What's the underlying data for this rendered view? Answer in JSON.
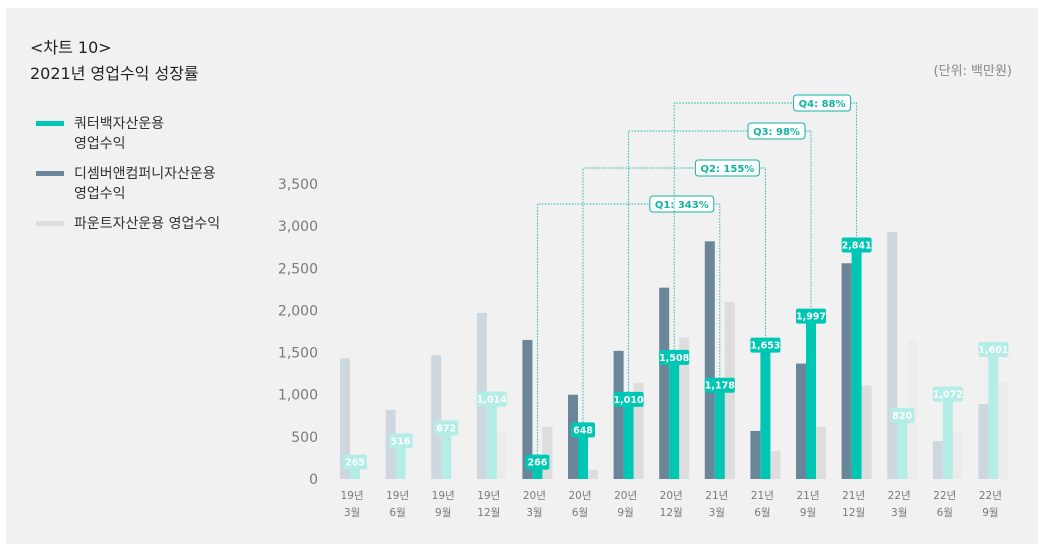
{
  "title_line1": "<차트 10>",
  "title_line2": "2021년 영업수익 성장률",
  "unit": "(단위: 백만원)",
  "legend": [
    {
      "line1": "쿼터백자산운용",
      "line2": "영업수익",
      "color": "#00c7b4"
    },
    {
      "line1": "디셈버앤컴퍼니자산운용",
      "line2": "영업수익",
      "color": "#6b8599"
    },
    {
      "line1": "파운트자산운용 영업수익",
      "line2": "",
      "color": "#d9d9d9"
    }
  ],
  "chart_data": {
    "type": "bar",
    "title": "2021년 영업수익 성장률",
    "ylabel": "백만원",
    "ylim": [
      0,
      3500
    ],
    "yticks": [
      0,
      500,
      1000,
      1500,
      2000,
      2500,
      3000,
      3500
    ],
    "ytick_labels": [
      "0",
      "500",
      "1,000",
      "1,500",
      "2,000",
      "2,500",
      "3,000",
      "3,500"
    ],
    "categories": [
      [
        "19년",
        "3월"
      ],
      [
        "19년",
        "6월"
      ],
      [
        "19년",
        "9월"
      ],
      [
        "19년",
        "12월"
      ],
      [
        "20년",
        "3월"
      ],
      [
        "20년",
        "6월"
      ],
      [
        "20년",
        "9월"
      ],
      [
        "20년",
        "12월"
      ],
      [
        "21년",
        "3월"
      ],
      [
        "21년",
        "6월"
      ],
      [
        "21년",
        "9월"
      ],
      [
        "21년",
        "12월"
      ],
      [
        "22년",
        "3월"
      ],
      [
        "22년",
        "6월"
      ],
      [
        "22년",
        "9월"
      ]
    ],
    "series": [
      {
        "name": "디셈버앤컴퍼니자산운용 영업수익",
        "values": [
          1430,
          820,
          1470,
          1970,
          1650,
          1000,
          1520,
          2270,
          2820,
          570,
          1370,
          2560,
          2930,
          450,
          890
        ]
      },
      {
        "name": "쿼터백자산운용 영업수익",
        "values": [
          265,
          516,
          672,
          1014,
          266,
          648,
          1010,
          1508,
          1178,
          1653,
          1997,
          2841,
          820,
          1072,
          1601
        ],
        "labels": [
          "265",
          "516",
          "672",
          "1,014",
          "266",
          "648",
          "1,010",
          "1,508",
          "1,178",
          "1,653",
          "1,997",
          "2,841",
          "820",
          "1,072",
          "1,601"
        ]
      },
      {
        "name": "파운트자산운용 영업수익",
        "values": [
          0,
          0,
          0,
          570,
          620,
          110,
          1140,
          1680,
          2100,
          330,
          620,
          1110,
          1650,
          560,
          1150
        ]
      }
    ],
    "highlight_from": 4,
    "highlight_to": 11,
    "annotations": [
      {
        "label": "Q1: 343%",
        "from": 4,
        "to": 8
      },
      {
        "label": "Q2: 155%",
        "from": 5,
        "to": 9
      },
      {
        "label": "Q3: 98%",
        "from": 6,
        "to": 10
      },
      {
        "label": "Q4: 88%",
        "from": 7,
        "to": 11
      }
    ],
    "colors": {
      "quarterback": "#00c7b4",
      "quarterback_faded": "#b4ece6",
      "december": "#6b8599",
      "december_faded": "#cfd7de",
      "fount": "#dddddd",
      "fount_faded": "#ececec",
      "annotation": "#13b3a6",
      "axis_text": "#888888"
    }
  }
}
